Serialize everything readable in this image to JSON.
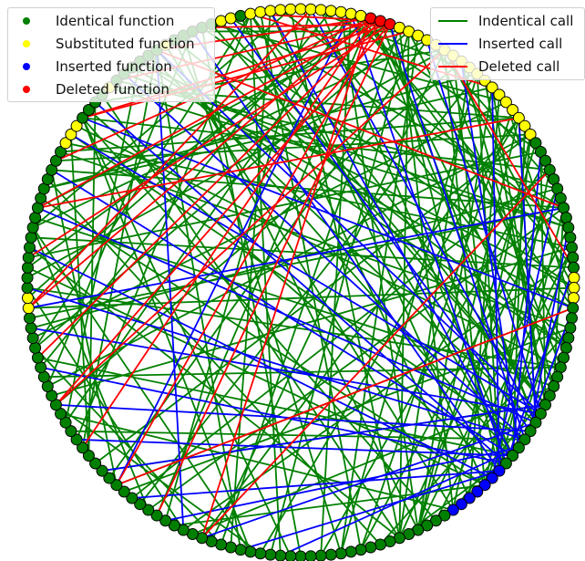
{
  "legends": {
    "functions": [
      {
        "label": "Identical function",
        "color": "#008000"
      },
      {
        "label": "Substituted function",
        "color": "#ffff00"
      },
      {
        "label": "Inserted function",
        "color": "#0000ff"
      },
      {
        "label": "Deleted function",
        "color": "#ff0000"
      }
    ],
    "calls": [
      {
        "label": "Indentical call",
        "color": "#008000"
      },
      {
        "label": "Inserted call",
        "color": "#0000ff"
      },
      {
        "label": "Deleted call",
        "color": "#ff0000"
      }
    ]
  },
  "graph": {
    "node_colors": {
      "identical": "#008000",
      "substituted": "#ffff00",
      "inserted": "#0000ff",
      "deleted": "#ff0000"
    },
    "node_outline": "#000000",
    "nodes": [
      "identical",
      "identical",
      "identical",
      "identical",
      "identical",
      "identical",
      "identical",
      "identical",
      "identical",
      "identical",
      "identical",
      "identical",
      "identical",
      "identical",
      "identical",
      "identical",
      "identical",
      "identical",
      "identical",
      "identical",
      "identical",
      "identical",
      "identical",
      "identical",
      "identical",
      "identical",
      "identical",
      "identical",
      "identical",
      "identical",
      "identical",
      "identical",
      "identical",
      "identical",
      "identical",
      "identical",
      "identical",
      "identical",
      "identical",
      "identical",
      "substituted",
      "substituted",
      "identical",
      "identical",
      "identical",
      "identical",
      "identical",
      "identical",
      "identical",
      "identical",
      "identical",
      "identical",
      "identical",
      "identical",
      "identical",
      "identical",
      "identical",
      "substituted",
      "substituted",
      "substituted",
      "identical",
      "identical",
      "identical",
      "identical",
      "substituted",
      "identical",
      "identical",
      "identical",
      "identical",
      "identical",
      "identical",
      "substituted",
      "identical",
      "identical",
      "identical",
      "identical",
      "identical",
      "substituted",
      "substituted",
      "identical",
      "substituted",
      "substituted",
      "substituted",
      "substituted",
      "substituted",
      "substituted",
      "substituted",
      "substituted",
      "substituted",
      "substituted",
      "substituted",
      "substituted",
      "deleted",
      "deleted",
      "deleted",
      "substituted",
      "substituted",
      "substituted",
      "substituted",
      "substituted",
      "substituted",
      "substituted",
      "substituted",
      "substituted",
      "substituted",
      "substituted",
      "substituted",
      "substituted",
      "substituted",
      "substituted",
      "substituted",
      "substituted",
      "substituted",
      "identical",
      "identical",
      "identical",
      "identical",
      "identical",
      "identical",
      "identical",
      "identical",
      "identical",
      "identical",
      "identical",
      "identical",
      "identical",
      "identical",
      "substituted",
      "substituted",
      "substituted",
      "identical",
      "identical",
      "identical",
      "identical",
      "identical",
      "identical",
      "identical",
      "identical",
      "identical",
      "identical",
      "identical",
      "identical",
      "identical",
      "identical",
      "identical",
      "identical",
      "identical",
      "identical",
      "inserted",
      "inserted",
      "inserted",
      "inserted",
      "inserted",
      "inserted",
      "inserted",
      "identical",
      "identical",
      "identical",
      "identical",
      "identical",
      "identical",
      "identical",
      "identical",
      "identical",
      "identical",
      "identical",
      "identical",
      "identical",
      "identical",
      "identical"
    ],
    "edges": [
      {
        "kind": "identical",
        "pairs": [
          [
            5,
            48
          ],
          [
            5,
            60
          ],
          [
            6,
            70
          ],
          [
            7,
            82
          ],
          [
            8,
            95
          ],
          [
            9,
            100
          ],
          [
            10,
            110
          ],
          [
            12,
            125
          ],
          [
            14,
            86
          ],
          [
            15,
            92
          ],
          [
            17,
            104
          ],
          [
            18,
            116
          ],
          [
            20,
            130
          ],
          [
            22,
            140
          ],
          [
            24,
            58
          ],
          [
            25,
            70
          ],
          [
            26,
            80
          ],
          [
            28,
            90
          ],
          [
            30,
            102
          ],
          [
            32,
            112
          ],
          [
            34,
            88
          ],
          [
            36,
            96
          ],
          [
            38,
            118
          ],
          [
            40,
            128
          ],
          [
            42,
            136
          ],
          [
            44,
            150
          ],
          [
            46,
            160
          ],
          [
            48,
            84
          ],
          [
            50,
            94
          ],
          [
            52,
            106
          ],
          [
            54,
            120
          ],
          [
            56,
            132
          ],
          [
            58,
            144
          ],
          [
            60,
            156
          ],
          [
            62,
            100
          ],
          [
            64,
            110
          ],
          [
            66,
            122
          ],
          [
            68,
            134
          ],
          [
            70,
            146
          ],
          [
            72,
            158
          ],
          [
            74,
            96
          ],
          [
            76,
            108
          ],
          [
            78,
            120
          ],
          [
            80,
            140
          ],
          [
            82,
            150
          ],
          [
            84,
            160
          ],
          [
            86,
            104
          ],
          [
            88,
            114
          ],
          [
            90,
            126
          ],
          [
            92,
            138
          ],
          [
            94,
            148
          ],
          [
            96,
            160
          ],
          [
            98,
            118
          ],
          [
            100,
            128
          ],
          [
            102,
            138
          ],
          [
            104,
            148
          ],
          [
            106,
            158
          ],
          [
            108,
            130
          ],
          [
            110,
            142
          ],
          [
            112,
            154
          ],
          [
            114,
            140
          ],
          [
            116,
            150
          ],
          [
            118,
            160
          ],
          [
            120,
            148
          ],
          [
            122,
            158
          ],
          [
            124,
            150
          ],
          [
            2,
            80
          ],
          [
            3,
            96
          ],
          [
            4,
            110
          ],
          [
            11,
            138
          ],
          [
            13,
            150
          ],
          [
            16,
            120
          ],
          [
            19,
            132
          ],
          [
            21,
            98
          ],
          [
            23,
            112
          ],
          [
            27,
            144
          ],
          [
            29,
            154
          ],
          [
            31,
            124
          ],
          [
            33,
            136
          ],
          [
            35,
            146
          ],
          [
            37,
            108
          ],
          [
            39,
            120
          ],
          [
            41,
            90
          ],
          [
            43,
            100
          ],
          [
            45,
            114
          ],
          [
            47,
            126
          ],
          [
            49,
            138
          ],
          [
            51,
            150
          ],
          [
            53,
            162
          ],
          [
            55,
            112
          ],
          [
            57,
            124
          ],
          [
            59,
            136
          ],
          [
            61,
            148
          ],
          [
            63,
            160
          ],
          [
            65,
            118
          ],
          [
            67,
            130
          ],
          [
            69,
            142
          ],
          [
            71,
            154
          ],
          [
            73,
            166
          ],
          [
            75,
            128
          ],
          [
            77,
            140
          ],
          [
            79,
            152
          ],
          [
            81,
            164
          ],
          [
            83,
            122
          ],
          [
            85,
            134
          ],
          [
            87,
            146
          ],
          [
            89,
            158
          ],
          [
            91,
            130
          ],
          [
            93,
            142
          ],
          [
            95,
            154
          ],
          [
            97,
            166
          ],
          [
            99,
            136
          ],
          [
            101,
            148
          ],
          [
            103,
            160
          ],
          [
            105,
            140
          ],
          [
            107,
            152
          ],
          [
            109,
            164
          ],
          [
            111,
            146
          ],
          [
            113,
            158
          ],
          [
            115,
            168
          ],
          [
            1,
            60
          ],
          [
            0,
            75
          ],
          [
            168,
            90
          ],
          [
            166,
            104
          ],
          [
            164,
            118
          ],
          [
            162,
            132
          ],
          [
            160,
            146
          ],
          [
            158,
            110
          ],
          [
            156,
            124
          ],
          [
            154,
            138
          ],
          [
            152,
            150
          ],
          [
            150,
            100
          ],
          [
            148,
            112
          ],
          [
            146,
            126
          ],
          [
            144,
            140
          ],
          [
            142,
            92
          ],
          [
            140,
            106
          ],
          [
            138,
            120
          ],
          [
            136,
            132
          ],
          [
            134,
            96
          ],
          [
            4,
            30
          ],
          [
            8,
            36
          ],
          [
            12,
            42
          ],
          [
            16,
            48
          ],
          [
            20,
            54
          ],
          [
            24,
            62
          ],
          [
            28,
            68
          ],
          [
            32,
            74
          ],
          [
            36,
            80
          ],
          [
            40,
            86
          ],
          [
            44,
            92
          ],
          [
            48,
            98
          ],
          [
            52,
            104
          ],
          [
            56,
            110
          ],
          [
            60,
            116
          ],
          [
            64,
            122
          ],
          [
            68,
            128
          ],
          [
            72,
            134
          ],
          [
            76,
            140
          ],
          [
            80,
            146
          ]
        ]
      },
      {
        "kind": "inserted",
        "pairs": [
          [
            2,
            145
          ],
          [
            6,
            148
          ],
          [
            10,
            142
          ],
          [
            14,
            145
          ],
          [
            18,
            148
          ],
          [
            22,
            140
          ],
          [
            26,
            146
          ],
          [
            30,
            143
          ],
          [
            34,
            147
          ],
          [
            38,
            141
          ],
          [
            42,
            144
          ],
          [
            46,
            149
          ],
          [
            50,
            142
          ],
          [
            54,
            146
          ],
          [
            58,
            141
          ],
          [
            62,
            147
          ],
          [
            66,
            144
          ],
          [
            70,
            141
          ],
          [
            74,
            148
          ],
          [
            78,
            143
          ],
          [
            82,
            146
          ],
          [
            86,
            142
          ],
          [
            90,
            147
          ],
          [
            94,
            144
          ],
          [
            98,
            141
          ],
          [
            102,
            145
          ],
          [
            106,
            148
          ],
          [
            110,
            142
          ],
          [
            114,
            146
          ],
          [
            118,
            149
          ],
          [
            122,
            143
          ],
          [
            126,
            147
          ],
          [
            130,
            144
          ],
          [
            134,
            141
          ],
          [
            12,
            70
          ],
          [
            20,
            90
          ],
          [
            40,
            120
          ],
          [
            60,
            130
          ]
        ]
      },
      {
        "kind": "deleted",
        "pairs": [
          [
            92,
            10
          ],
          [
            93,
            20
          ],
          [
            94,
            30
          ],
          [
            92,
            40
          ],
          [
            93,
            50
          ],
          [
            94,
            60
          ],
          [
            92,
            70
          ],
          [
            93,
            80
          ],
          [
            94,
            15
          ],
          [
            92,
            25
          ],
          [
            93,
            35
          ],
          [
            94,
            45
          ],
          [
            92,
            55
          ],
          [
            93,
            65
          ],
          [
            94,
            75
          ],
          [
            30,
            100
          ],
          [
            50,
            110
          ],
          [
            70,
            120
          ],
          [
            20,
            130
          ],
          [
            40,
            86
          ],
          [
            60,
            96
          ],
          [
            80,
            106
          ],
          [
            10,
            116
          ],
          [
            100,
            126
          ]
        ]
      }
    ]
  }
}
